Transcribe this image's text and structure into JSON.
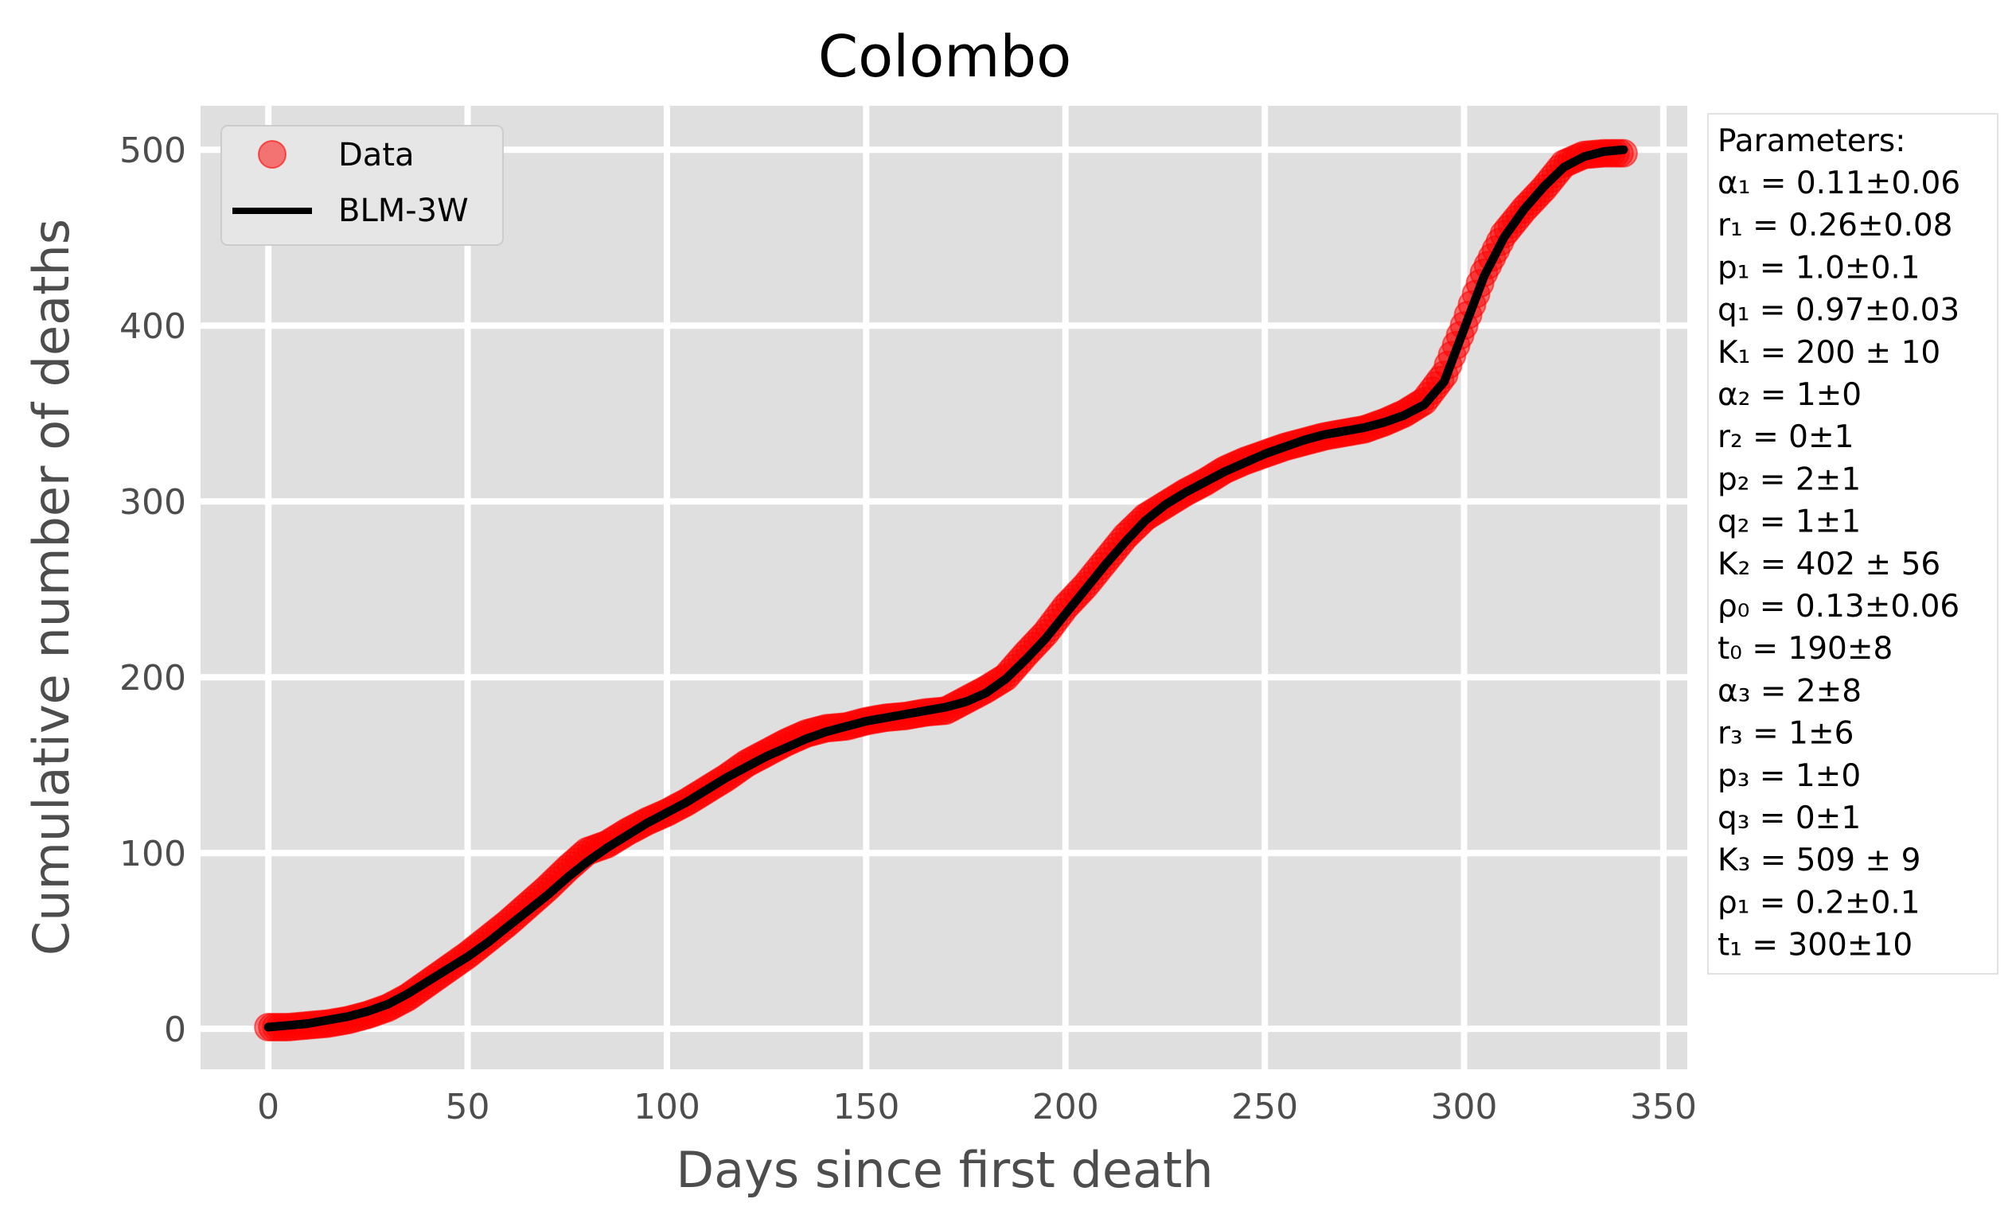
{
  "chart_data": {
    "type": "scatter",
    "title": "Colombo",
    "xlabel": "Days since first death",
    "ylabel": "Cumulative number of deaths",
    "xlim": [
      -17,
      356
    ],
    "ylim": [
      -23,
      525
    ],
    "xticks": [
      0,
      50,
      100,
      150,
      200,
      250,
      300,
      350
    ],
    "yticks": [
      0,
      100,
      200,
      300,
      400,
      500
    ],
    "grid": true,
    "legend_placement": "top-left",
    "background_color": "#dfdfdf",
    "series": [
      {
        "name": "Data",
        "kind": "scatter",
        "color": "#ff0000",
        "x": [
          0,
          5,
          10,
          15,
          20,
          25,
          30,
          35,
          40,
          45,
          50,
          55,
          60,
          65,
          70,
          75,
          80,
          85,
          90,
          95,
          100,
          105,
          110,
          115,
          120,
          125,
          130,
          135,
          140,
          145,
          150,
          155,
          160,
          165,
          170,
          175,
          180,
          185,
          190,
          195,
          200,
          205,
          210,
          215,
          220,
          225,
          230,
          235,
          240,
          245,
          250,
          255,
          260,
          265,
          270,
          275,
          280,
          285,
          290,
          295,
          300,
          305,
          310,
          315,
          320,
          325,
          330,
          335,
          340
        ],
        "y": [
          1,
          1,
          2,
          3,
          5,
          8,
          12,
          18,
          26,
          34,
          42,
          51,
          60,
          70,
          80,
          91,
          101,
          105,
          112,
          118,
          123,
          129,
          136,
          143,
          151,
          157,
          163,
          168,
          171,
          172,
          175,
          177,
          178,
          180,
          181,
          187,
          193,
          200,
          213,
          225,
          240,
          252,
          266,
          280,
          291,
          298,
          305,
          311,
          318,
          323,
          327,
          331,
          334,
          337,
          339,
          341,
          345,
          350,
          357,
          372,
          400,
          430,
          452,
          466,
          478,
          492,
          497,
          498,
          498
        ]
      },
      {
        "name": "BLM-3W",
        "kind": "line",
        "color": "#000000",
        "x": [
          0,
          5,
          10,
          15,
          20,
          25,
          30,
          35,
          40,
          45,
          50,
          55,
          60,
          65,
          70,
          75,
          80,
          85,
          90,
          95,
          100,
          105,
          110,
          115,
          120,
          125,
          130,
          135,
          140,
          145,
          150,
          155,
          160,
          165,
          170,
          175,
          180,
          185,
          190,
          195,
          200,
          205,
          210,
          215,
          220,
          225,
          230,
          235,
          240,
          245,
          250,
          255,
          260,
          265,
          270,
          275,
          280,
          285,
          290,
          295,
          300,
          305,
          310,
          315,
          320,
          325,
          330,
          335,
          340
        ],
        "y": [
          1,
          2,
          3,
          5,
          7,
          10,
          14,
          20,
          27,
          34,
          41,
          49,
          58,
          67,
          76,
          86,
          95,
          103,
          110,
          117,
          123,
          129,
          136,
          143,
          149,
          155,
          160,
          165,
          169,
          172,
          175,
          177,
          179,
          181,
          183,
          186,
          191,
          199,
          210,
          222,
          236,
          250,
          264,
          277,
          289,
          298,
          305,
          311,
          317,
          322,
          327,
          331,
          335,
          338,
          340,
          342,
          345,
          349,
          355,
          368,
          398,
          428,
          450,
          466,
          479,
          490,
          496,
          499,
          500
        ]
      }
    ],
    "parameters_box": {
      "heading": "Parameters:",
      "lines": [
        "α₁ = 0.11±0.06",
        "r₁ = 0.26±0.08",
        "p₁ = 1.0±0.1",
        "q₁ = 0.97±0.03",
        "K₁ = 200 ± 10",
        "α₂ = 1±0",
        "r₂ = 0±1",
        "p₂ = 2±1",
        "q₂ = 1±1",
        "K₂ = 402 ± 56",
        "ρ₀ = 0.13±0.06",
        "t₀ = 190±8",
        "α₃ = 2±8",
        "r₃ = 1±6",
        "p₃ = 1±0",
        "q₃ = 0±1",
        "K₃ = 509 ± 9",
        "ρ₁ = 0.2±0.1",
        "t₁ = 300±10"
      ]
    }
  }
}
